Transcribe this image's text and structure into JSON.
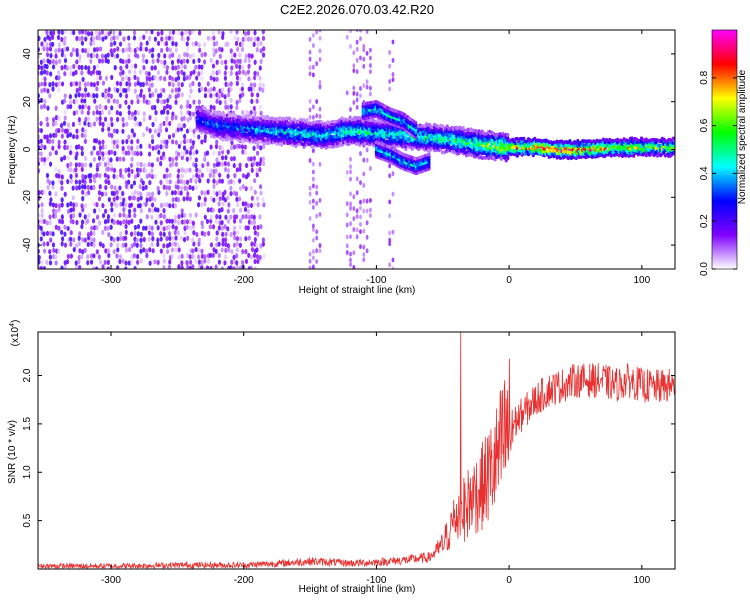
{
  "title": "C2E2.2026.070.03.42.R20",
  "chart_data": [
    {
      "type": "heatmap",
      "name": "spectrogram",
      "xlabel": "Height of straight line (km)",
      "ylabel": "Frequency (Hz)",
      "xlim": [
        -355,
        125
      ],
      "ylim": [
        -50,
        50
      ],
      "xticks": [
        -300,
        -200,
        -100,
        0,
        100
      ],
      "xtick_labels": [
        "-300",
        "-200",
        "-100",
        "0",
        "100"
      ],
      "yticks": [
        -40,
        -20,
        0,
        20,
        40
      ],
      "ytick_labels": [
        "-40",
        "-20",
        "0",
        "20",
        "40"
      ],
      "colorbar": {
        "label": "Normalized spectral amplitude",
        "range": [
          0,
          1
        ],
        "ticks": [
          0.0,
          0.2,
          0.4,
          0.6,
          0.8
        ],
        "tick_labels": [
          "0.0",
          "0.2",
          "0.4",
          "0.6",
          "0.8"
        ],
        "colors": [
          "#ffffff",
          "#7f00ff",
          "#0000ff",
          "#00ffff",
          "#00ff00",
          "#ffff00",
          "#ff0000",
          "#ff00ff"
        ]
      },
      "ridge": {
        "x": [
          -235,
          -220,
          -200,
          -180,
          -160,
          -140,
          -120,
          -100,
          -80,
          -60,
          -40,
          -20,
          0,
          20,
          40,
          60,
          80,
          100,
          125
        ],
        "frequency": [
          13,
          10,
          9,
          8,
          7,
          6,
          8,
          7,
          6,
          5,
          4,
          2,
          1,
          1,
          0,
          0,
          1,
          1,
          1
        ],
        "amplitude": [
          0.3,
          0.35,
          0.35,
          0.4,
          0.45,
          0.45,
          0.5,
          0.45,
          0.5,
          0.5,
          0.55,
          0.6,
          0.7,
          0.8,
          0.85,
          0.8,
          0.7,
          0.65,
          0.6
        ]
      },
      "branch_upper": {
        "x": [
          -110,
          -100,
          -90,
          -80,
          -70
        ],
        "frequency": [
          16,
          17,
          14,
          12,
          8
        ]
      },
      "branch_lower": {
        "x": [
          -100,
          -90,
          -80,
          -70,
          -60
        ],
        "frequency": [
          0,
          -2,
          -5,
          -7,
          -5
        ]
      },
      "noise_region_x": [
        -355,
        -185
      ]
    },
    {
      "type": "line",
      "name": "snr",
      "xlabel": "Height of straight line (km)",
      "ylabel": "SNR (10 * v/v)",
      "yscale_label": "(x10",
      "yscale_exp": "4",
      "yscale_close": ")",
      "xlim": [
        -355,
        125
      ],
      "ylim": [
        0,
        2.45
      ],
      "xticks": [
        -300,
        -200,
        -100,
        0,
        100
      ],
      "xtick_labels": [
        "-300",
        "-200",
        "-100",
        "0",
        "100"
      ],
      "yticks": [
        0.5,
        1.0,
        1.5,
        2.0
      ],
      "ytick_labels": [
        "0.5",
        "1.0",
        "1.5",
        "2.0"
      ],
      "color": "#e83030",
      "x": [
        -355,
        -300,
        -250,
        -200,
        -170,
        -150,
        -120,
        -100,
        -80,
        -60,
        -50,
        -45,
        -40,
        -35,
        -30,
        -20,
        -10,
        0,
        10,
        20,
        30,
        40,
        50,
        60,
        70,
        80,
        90,
        100,
        110,
        125
      ],
      "y": [
        0.03,
        0.03,
        0.04,
        0.04,
        0.06,
        0.08,
        0.06,
        0.07,
        0.09,
        0.12,
        0.25,
        0.4,
        0.55,
        0.6,
        0.7,
        0.85,
        1.1,
        1.45,
        1.6,
        1.75,
        1.85,
        1.9,
        1.95,
        1.95,
        1.95,
        1.9,
        1.95,
        1.9,
        1.88,
        1.9
      ]
    }
  ]
}
